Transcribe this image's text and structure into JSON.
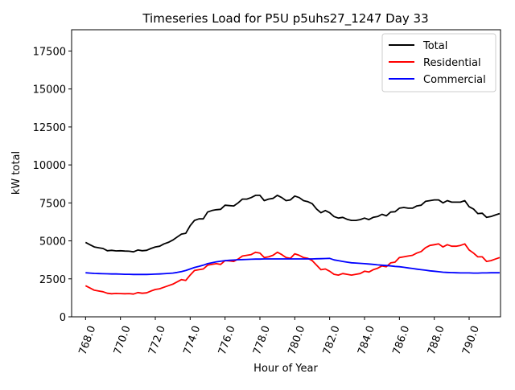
{
  "chart_data": {
    "type": "line",
    "title": "Timeseries Load for P5U p5uhs27_1247  Day 33",
    "xlabel": "Hour of Year",
    "ylabel": "kW total",
    "xlim": [
      767.2,
      791.8
    ],
    "ylim": [
      0,
      18900
    ],
    "x_ticks": [
      768.0,
      770.0,
      772.0,
      774.0,
      776.0,
      778.0,
      780.0,
      782.0,
      784.0,
      786.0,
      788.0,
      790.0
    ],
    "x_tick_labels": [
      "768.0",
      "770.0",
      "772.0",
      "774.0",
      "776.0",
      "778.0",
      "780.0",
      "782.0",
      "784.0",
      "786.0",
      "788.0",
      "790.0"
    ],
    "y_ticks": [
      0,
      2500,
      5000,
      7500,
      10000,
      12500,
      15000,
      17500
    ],
    "y_tick_labels": [
      "0",
      "2500",
      "5000",
      "7500",
      "10000",
      "12500",
      "15000",
      "17500"
    ],
    "grid": false,
    "legend_position": "top-right",
    "x": [
      768.0,
      768.25,
      768.5,
      768.75,
      769.0,
      769.25,
      769.5,
      769.75,
      770.0,
      770.25,
      770.5,
      770.75,
      771.0,
      771.25,
      771.5,
      771.75,
      772.0,
      772.25,
      772.5,
      772.75,
      773.0,
      773.25,
      773.5,
      773.75,
      774.0,
      774.25,
      774.5,
      774.75,
      775.0,
      775.25,
      775.5,
      775.75,
      776.0,
      776.25,
      776.5,
      776.75,
      777.0,
      777.25,
      777.5,
      777.75,
      778.0,
      778.25,
      778.5,
      778.75,
      779.0,
      779.25,
      779.5,
      779.75,
      780.0,
      780.25,
      780.5,
      780.75,
      781.0,
      781.25,
      781.5,
      781.75,
      782.0,
      782.25,
      782.5,
      782.75,
      783.0,
      783.25,
      783.5,
      783.75,
      784.0,
      784.25,
      784.5,
      784.75,
      785.0,
      785.25,
      785.5,
      785.75,
      786.0,
      786.25,
      786.5,
      786.75,
      787.0,
      787.25,
      787.5,
      787.75,
      788.0,
      788.25,
      788.5,
      788.75,
      789.0,
      789.25,
      789.5,
      789.75,
      790.0,
      790.25,
      790.5,
      790.75,
      791.0,
      791.25,
      791.5,
      791.75
    ],
    "series": [
      {
        "name": "Total",
        "color": "#000000",
        "values": [
          4900,
          4750,
          4600,
          4550,
          4500,
          4350,
          4380,
          4340,
          4350,
          4330,
          4320,
          4280,
          4400,
          4350,
          4380,
          4500,
          4600,
          4650,
          4800,
          4900,
          5050,
          5250,
          5450,
          5500,
          6000,
          6350,
          6450,
          6450,
          6900,
          7000,
          7050,
          7080,
          7350,
          7320,
          7300,
          7500,
          7750,
          7750,
          7850,
          8000,
          8000,
          7650,
          7750,
          7800,
          8000,
          7850,
          7650,
          7700,
          7950,
          7850,
          7650,
          7580,
          7450,
          7100,
          6850,
          7000,
          6850,
          6600,
          6500,
          6550,
          6420,
          6350,
          6350,
          6400,
          6500,
          6400,
          6550,
          6600,
          6750,
          6650,
          6900,
          6920,
          7150,
          7200,
          7150,
          7150,
          7300,
          7350,
          7600,
          7650,
          7700,
          7700,
          7500,
          7650,
          7550,
          7550,
          7550,
          7650,
          7250,
          7100,
          6800,
          6820,
          6550,
          6600,
          6700,
          6800
        ]
      },
      {
        "name": "Residential",
        "color": "#ff0000",
        "values": [
          2050,
          1900,
          1750,
          1700,
          1650,
          1550,
          1520,
          1540,
          1530,
          1520,
          1530,
          1500,
          1600,
          1550,
          1580,
          1700,
          1800,
          1850,
          1950,
          2050,
          2150,
          2300,
          2450,
          2400,
          2750,
          3050,
          3100,
          3150,
          3400,
          3450,
          3500,
          3450,
          3700,
          3680,
          3650,
          3800,
          4000,
          4050,
          4100,
          4250,
          4200,
          3900,
          3950,
          4050,
          4250,
          4100,
          3900,
          3850,
          4150,
          4050,
          3900,
          3850,
          3700,
          3400,
          3100,
          3150,
          3000,
          2800,
          2750,
          2850,
          2800,
          2750,
          2800,
          2850,
          3000,
          2950,
          3100,
          3200,
          3350,
          3300,
          3550,
          3600,
          3900,
          3950,
          4000,
          4050,
          4200,
          4300,
          4550,
          4700,
          4750,
          4800,
          4600,
          4750,
          4650,
          4650,
          4700,
          4800,
          4400,
          4200,
          3950,
          3950,
          3650,
          3700,
          3800,
          3900
        ]
      },
      {
        "name": "Commercial",
        "color": "#0000ff",
        "values": [
          2900,
          2880,
          2860,
          2850,
          2840,
          2830,
          2820,
          2820,
          2810,
          2800,
          2800,
          2790,
          2790,
          2790,
          2790,
          2800,
          2810,
          2820,
          2840,
          2860,
          2880,
          2920,
          2980,
          3050,
          3150,
          3250,
          3320,
          3400,
          3500,
          3560,
          3620,
          3660,
          3700,
          3720,
          3740,
          3760,
          3770,
          3780,
          3790,
          3800,
          3800,
          3810,
          3810,
          3810,
          3810,
          3810,
          3810,
          3810,
          3810,
          3810,
          3810,
          3810,
          3810,
          3820,
          3830,
          3840,
          3850,
          3750,
          3700,
          3650,
          3600,
          3560,
          3540,
          3520,
          3500,
          3480,
          3450,
          3420,
          3400,
          3380,
          3350,
          3320,
          3300,
          3260,
          3220,
          3180,
          3140,
          3100,
          3070,
          3030,
          3000,
          2970,
          2940,
          2920,
          2910,
          2900,
          2890,
          2890,
          2890,
          2880,
          2880,
          2890,
          2890,
          2900,
          2900,
          2900
        ]
      }
    ]
  }
}
